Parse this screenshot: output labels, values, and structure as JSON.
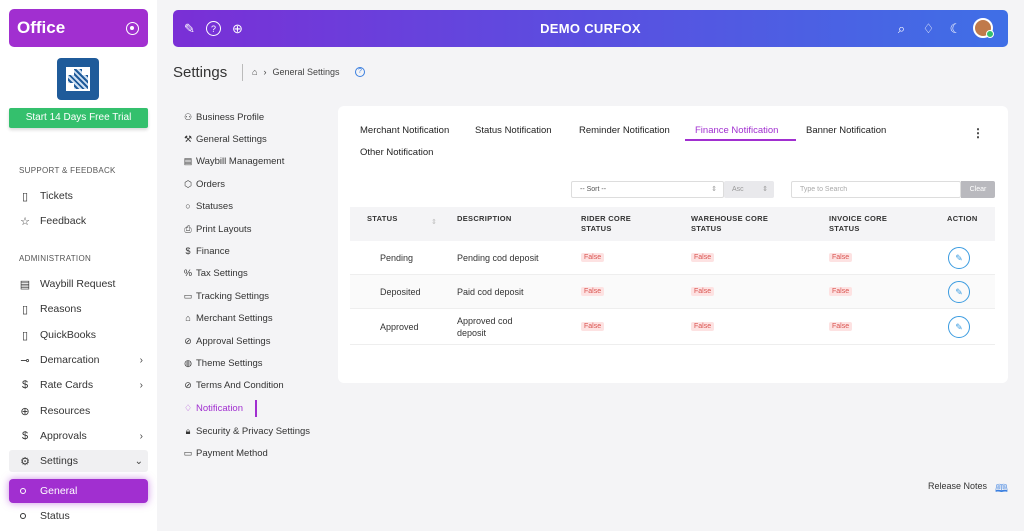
{
  "sidebar": {
    "brand": "Office",
    "trial_button": "Start 14 Days Free Trial",
    "support_heading": "SUPPORT & FEEDBACK",
    "support_items": [
      {
        "label": "Tickets",
        "icon": "book-icon"
      },
      {
        "label": "Feedback",
        "icon": "star-icon"
      }
    ],
    "admin_heading": "ADMINISTRATION",
    "admin_items": [
      {
        "label": "Waybill Request",
        "icon": "document-icon"
      },
      {
        "label": "Reasons",
        "icon": "book-icon"
      },
      {
        "label": "QuickBooks",
        "icon": "book-icon"
      },
      {
        "label": "Demarcation",
        "icon": "route-icon"
      },
      {
        "label": "Rate Cards",
        "icon": "dollar-icon"
      },
      {
        "label": "Resources",
        "icon": "globe-icon"
      },
      {
        "label": "Approvals",
        "icon": "dollar-icon"
      },
      {
        "label": "Settings",
        "icon": "gear-icon"
      }
    ],
    "sub_items": [
      {
        "label": "General"
      },
      {
        "label": "Status"
      }
    ]
  },
  "topbar": {
    "title": "DEMO CURFOX"
  },
  "page": {
    "title": "Settings",
    "breadcrumb": "General Settings"
  },
  "settings_menu": [
    {
      "label": "Business Profile",
      "icon": "people-icon"
    },
    {
      "label": "General Settings",
      "icon": "wrench-icon"
    },
    {
      "label": "Waybill Management",
      "icon": "document-icon"
    },
    {
      "label": "Orders",
      "icon": "box-icon"
    },
    {
      "label": "Statuses",
      "icon": "circle-icon"
    },
    {
      "label": "Print Layouts",
      "icon": "printer-icon"
    },
    {
      "label": "Finance",
      "icon": "dollar-icon"
    },
    {
      "label": "Tax Settings",
      "icon": "percent-icon"
    },
    {
      "label": "Tracking Settings",
      "icon": "monitor-icon"
    },
    {
      "label": "Merchant Settings",
      "icon": "store-icon"
    },
    {
      "label": "Approval Settings",
      "icon": "check-circle-icon"
    },
    {
      "label": "Theme Settings",
      "icon": "palette-icon"
    },
    {
      "label": "Terms And Condition",
      "icon": "check-circle-icon"
    },
    {
      "label": "Notification",
      "icon": "bell-icon"
    },
    {
      "label": "Security & Privacy Settings",
      "icon": "lock-icon"
    },
    {
      "label": "Payment Method",
      "icon": "card-icon"
    }
  ],
  "tabs": [
    {
      "label": "Merchant Notification"
    },
    {
      "label": "Status Notification"
    },
    {
      "label": "Reminder Notification"
    },
    {
      "label": "Finance Notification"
    },
    {
      "label": "Banner Notification"
    },
    {
      "label": "Other Notification"
    }
  ],
  "filters": {
    "sort_value": "-- Sort --",
    "order_value": "Asc",
    "search_placeholder": "Type to Search",
    "clear_label": "Clear"
  },
  "table": {
    "headers": {
      "status": "STATUS",
      "description": "DESCRIPTION",
      "rider_1": "RIDER CORE",
      "rider_2": "STATUS",
      "warehouse_1": "WAREHOUSE CORE",
      "warehouse_2": "STATUS",
      "invoice_1": "INVOICE CORE",
      "invoice_2": "STATUS",
      "action": "ACTION"
    },
    "rows": [
      {
        "status": "Pending",
        "description": "Pending cod deposit",
        "rider": "False",
        "warehouse": "False",
        "invoice": "False"
      },
      {
        "status": "Deposited",
        "description": "Paid cod deposit",
        "rider": "False",
        "warehouse": "False",
        "invoice": "False"
      },
      {
        "status": "Approved",
        "description_1": "Approved cod",
        "description_2": "deposit",
        "rider": "False",
        "warehouse": "False",
        "invoice": "False"
      }
    ]
  },
  "footer": {
    "release_notes": "Release Notes"
  },
  "colors": {
    "brand": "#a12fd0",
    "trial": "#34c06d",
    "topbar_start": "#7a2fd6",
    "topbar_end": "#3f6fe6",
    "badge_false": "#d9534f"
  }
}
